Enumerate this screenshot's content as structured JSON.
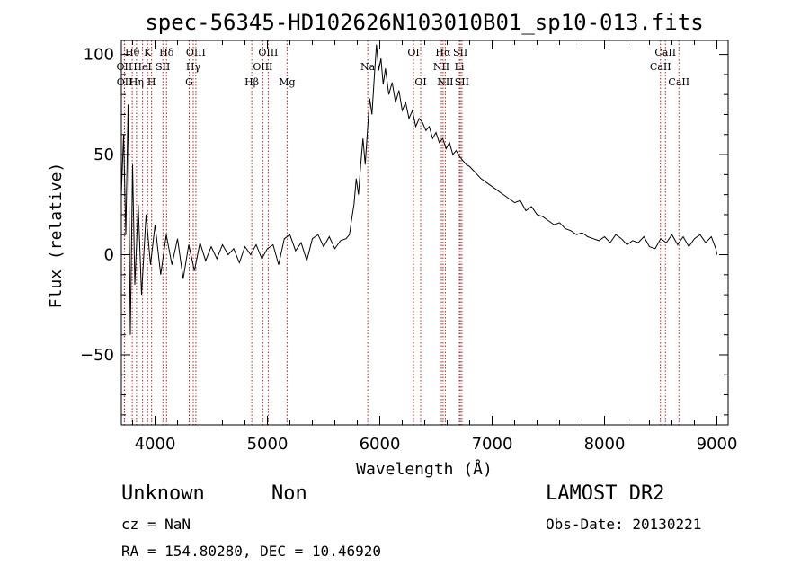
{
  "chart_data": {
    "type": "line",
    "title": "spec-56345-HD102626N103010B01_sp10-013.fits",
    "xlabel": "Wavelength (Å)",
    "ylabel": "Flux (relative)",
    "xlim": [
      3700,
      9100
    ],
    "ylim": [
      -85,
      107
    ],
    "xticks": [
      4000,
      5000,
      6000,
      7000,
      8000,
      9000
    ],
    "yticks": [
      -50,
      0,
      50,
      100
    ],
    "grid": false,
    "series": [
      {
        "x": [
          3700,
          3720,
          3740,
          3760,
          3780,
          3800,
          3820,
          3850,
          3880,
          3920,
          3960,
          4000,
          4050,
          4100,
          4150,
          4200,
          4250,
          4300,
          4350,
          4400,
          4450,
          4500,
          4550,
          4600,
          4650,
          4700,
          4750,
          4800,
          4850,
          4900,
          4950,
          5000,
          5050,
          5100,
          5150,
          5200,
          5250,
          5300,
          5350,
          5400,
          5450,
          5500,
          5550,
          5600,
          5650,
          5700,
          5730,
          5750,
          5770,
          5790,
          5810,
          5830,
          5850,
          5870,
          5890,
          5910,
          5930,
          5950,
          5970,
          5990,
          6010,
          6030,
          6050,
          6080,
          6110,
          6140,
          6170,
          6200,
          6230,
          6260,
          6290,
          6320,
          6350,
          6380,
          6410,
          6440,
          6470,
          6500,
          6530,
          6560,
          6590,
          6620,
          6650,
          6680,
          6710,
          6740,
          6770,
          6800,
          6850,
          6900,
          6950,
          7000,
          7050,
          7100,
          7150,
          7200,
          7250,
          7300,
          7350,
          7400,
          7450,
          7500,
          7550,
          7600,
          7650,
          7700,
          7750,
          7800,
          7850,
          7900,
          7950,
          8000,
          8050,
          8100,
          8150,
          8200,
          8250,
          8300,
          8350,
          8400,
          8450,
          8500,
          8550,
          8600,
          8650,
          8700,
          8750,
          8800,
          8850,
          8900,
          8950,
          8990,
          9000
        ],
        "y": [
          30,
          60,
          10,
          75,
          -40,
          45,
          -15,
          25,
          -20,
          20,
          -5,
          15,
          -10,
          10,
          -5,
          8,
          -12,
          5,
          -8,
          6,
          -3,
          4,
          -2,
          5,
          0,
          3,
          -4,
          4,
          0,
          5,
          -2,
          3,
          5,
          -5,
          8,
          10,
          2,
          6,
          -3,
          8,
          10,
          4,
          9,
          3,
          7,
          8,
          10,
          18,
          25,
          38,
          30,
          45,
          58,
          45,
          62,
          78,
          70,
          88,
          105,
          92,
          98,
          85,
          93,
          80,
          86,
          76,
          82,
          72,
          76,
          68,
          72,
          64,
          68,
          66,
          62,
          64,
          58,
          61,
          56,
          58,
          53,
          56,
          50,
          52,
          49,
          47,
          45,
          44,
          41,
          38,
          36,
          34,
          32,
          30,
          28,
          26,
          27,
          22,
          24,
          20,
          19,
          17,
          15,
          16,
          13,
          12,
          10,
          11,
          9,
          8,
          7,
          9,
          6,
          10,
          8,
          5,
          7,
          6,
          9,
          4,
          3,
          8,
          6,
          10,
          5,
          9,
          4,
          8,
          10,
          6,
          9,
          3,
          0
        ]
      }
    ],
    "lines": [
      {
        "label": "Hθ",
        "x": 3797,
        "row": 1
      },
      {
        "label": "OII",
        "x": 3727,
        "row": 2
      },
      {
        "label": "OII",
        "x": 3729,
        "row": 3
      },
      {
        "label": "K",
        "x": 3934,
        "row": 1
      },
      {
        "label": "HeI",
        "x": 3889,
        "row": 2
      },
      {
        "label": "Hη",
        "x": 3835,
        "row": 3
      },
      {
        "label": "H",
        "x": 3969,
        "row": 3
      },
      {
        "label": "Hδ",
        "x": 4102,
        "row": 1
      },
      {
        "label": "SII",
        "x": 4070,
        "row": 2
      },
      {
        "label": "OIII",
        "x": 4363,
        "row": 1
      },
      {
        "label": "Hγ",
        "x": 4340,
        "row": 2
      },
      {
        "label": "G",
        "x": 4304,
        "row": 3
      },
      {
        "label": "OIII",
        "x": 5007,
        "row": 1
      },
      {
        "label": "OIII",
        "x": 4959,
        "row": 2
      },
      {
        "label": "Hβ",
        "x": 4861,
        "row": 3
      },
      {
        "label": "Mg",
        "x": 5175,
        "row": 3
      },
      {
        "label": "Na",
        "x": 5893,
        "row": 2
      },
      {
        "label": "OI",
        "x": 6300,
        "row": 1
      },
      {
        "label": "OI",
        "x": 6364,
        "row": 3
      },
      {
        "label": "Hα",
        "x": 6563,
        "row": 1
      },
      {
        "label": "NII",
        "x": 6548,
        "row": 2
      },
      {
        "label": "NII",
        "x": 6583,
        "row": 3
      },
      {
        "label": "SII",
        "x": 6717,
        "row": 1
      },
      {
        "label": "Li",
        "x": 6708,
        "row": 2
      },
      {
        "label": "SII",
        "x": 6731,
        "row": 3
      },
      {
        "label": "CaII",
        "x": 8542,
        "row": 1
      },
      {
        "label": "CaII",
        "x": 8498,
        "row": 2
      },
      {
        "label": "CaII",
        "x": 8662,
        "row": 3
      }
    ]
  },
  "info": {
    "object_class": "Unknown",
    "subclass": "Non",
    "survey": "LAMOST DR2",
    "cz": "cz = NaN",
    "obs_date": "Obs-Date: 20130221",
    "coords": "RA = 154.80280, DEC =  10.46920"
  }
}
